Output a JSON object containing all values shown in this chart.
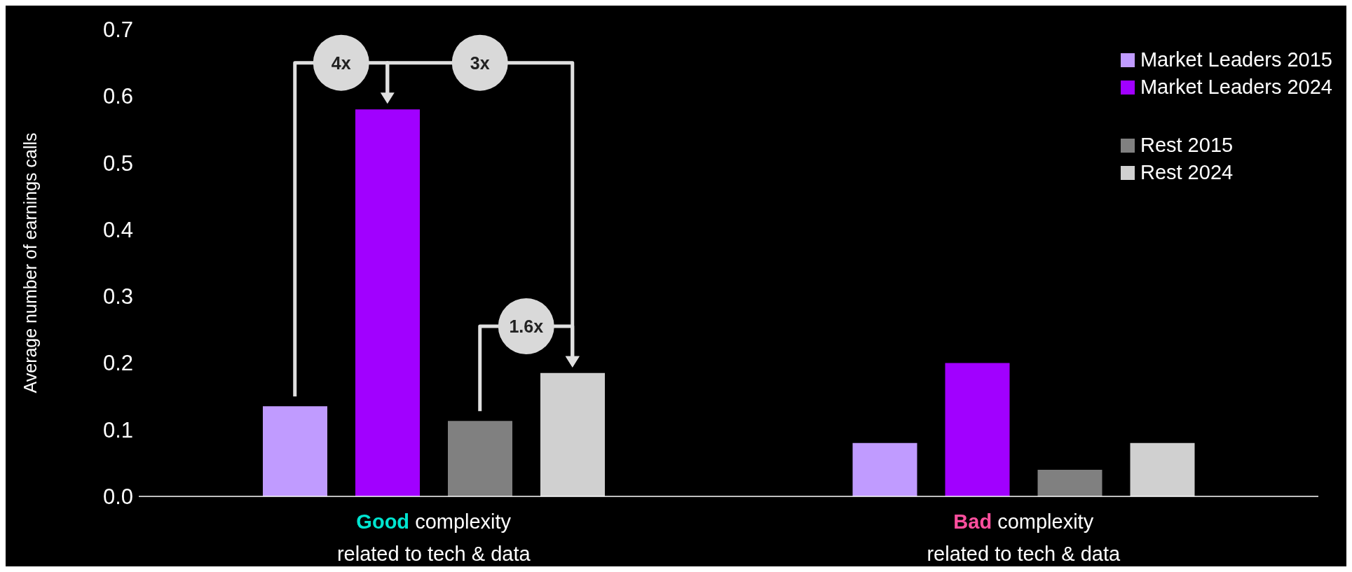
{
  "chart_data": {
    "type": "bar",
    "ylabel": "Average number of earnings calls",
    "categories": [
      "Good complexity related to tech & data",
      "Bad complexity related to tech & data"
    ],
    "series": [
      {
        "name": "Market Leaders 2015",
        "color": "#c09bff",
        "values": [
          0.135,
          0.08
        ]
      },
      {
        "name": "Market Leaders 2024",
        "color": "#a100ff",
        "values": [
          0.58,
          0.2
        ]
      },
      {
        "name": "Rest 2015",
        "color": "#808080",
        "values": [
          0.113,
          0.04
        ]
      },
      {
        "name": "Rest 2024",
        "color": "#d0d0d0",
        "values": [
          0.185,
          0.08
        ]
      }
    ],
    "ylim": [
      0,
      0.7
    ],
    "yticks": [
      {
        "value": 0,
        "label": "0.0"
      },
      {
        "value": 0.1,
        "label": "0.1"
      },
      {
        "value": 0.2,
        "label": "0.2"
      },
      {
        "value": 0.3,
        "label": "0.3"
      },
      {
        "value": 0.4,
        "label": "0.4"
      },
      {
        "value": 0.5,
        "label": "0.5"
      },
      {
        "value": 0.6,
        "label": "0.6"
      },
      {
        "value": 0.7,
        "label": "0.7"
      }
    ],
    "legend": "top right",
    "annotations": [
      "4x",
      "3x",
      "1.6x"
    ]
  }
}
